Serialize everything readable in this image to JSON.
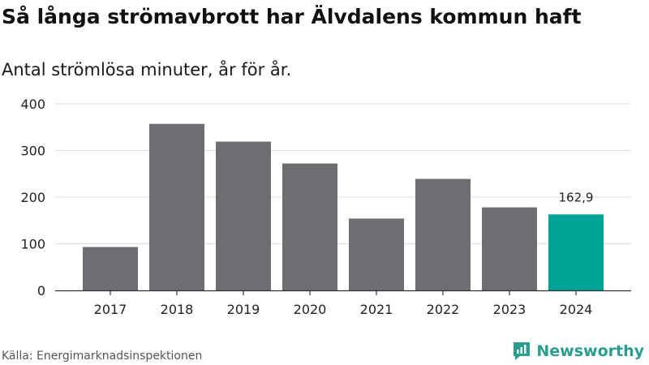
{
  "chart_data": {
    "type": "bar",
    "title": "Så långa strömavbrott har Älvdalens kommun haft",
    "subtitle": "Antal strömlösa minuter, år för år.",
    "categories": [
      "2017",
      "2018",
      "2019",
      "2020",
      "2021",
      "2022",
      "2023",
      "2024"
    ],
    "values": [
      93,
      357,
      319,
      272,
      154,
      239,
      178,
      162.9
    ],
    "highlight_index": 7,
    "highlight_label": "162,9",
    "ylim": [
      0,
      400
    ],
    "yticks": [
      0,
      100,
      200,
      300,
      400
    ],
    "xlabel": "",
    "ylabel": "",
    "grid": true,
    "colors": {
      "bar": "#6e6d72",
      "highlight": "#00a396",
      "grid": "#dddddd",
      "axis": "#333333",
      "tick_text": "#222222"
    }
  },
  "footer": {
    "source": "Källa: Energimarknadsinspektionen",
    "brand": "Newsworthy",
    "brand_icon": "newsworthy-logo-icon",
    "brand_color": "#2a9d8f"
  }
}
